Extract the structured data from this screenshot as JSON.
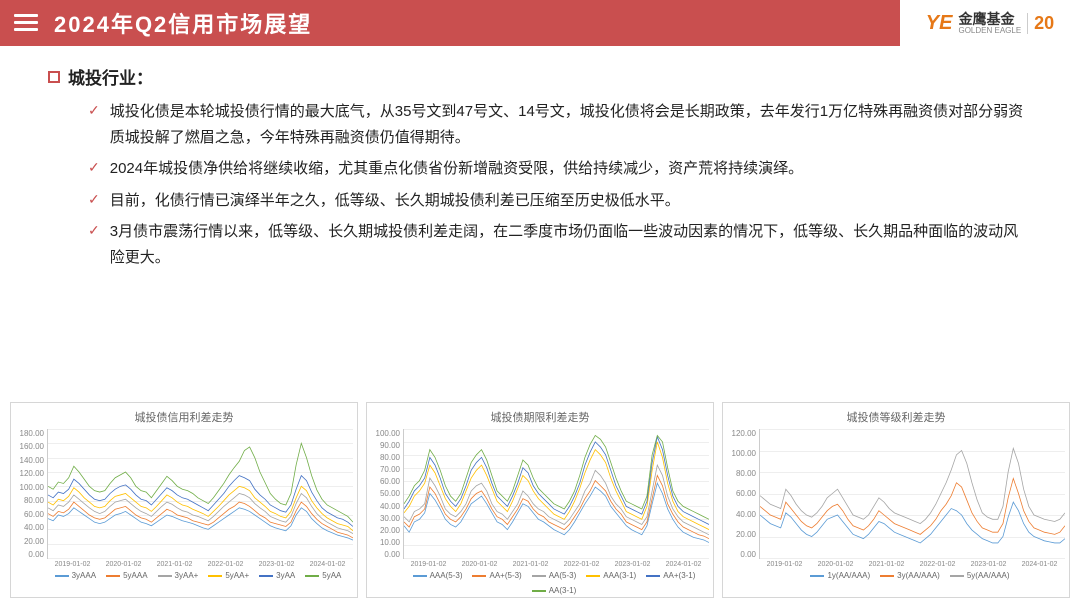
{
  "header": {
    "title": "2024年Q2信用市场展望",
    "logo_brand": "YE",
    "logo_name": "金鹰基金",
    "logo_name_en": "GOLDEN EAGLE",
    "logo_badge": "20"
  },
  "section": {
    "title": "城投行业：",
    "bullets": [
      "城投化债是本轮城投债行情的最大底气，从35号文到47号文、14号文，城投化债将会是长期政策，去年发行1万亿特殊再融资债对部分弱资质城投解了燃眉之急，今年特殊再融资债仍值得期待。",
      "2024年城投债净供给将继续收缩，尤其重点化债省份新增融资受限，供给持续减少，资产荒将持续演绎。",
      "目前，化债行情已演绎半年之久，低等级、长久期城投债利差已压缩至历史极低水平。",
      "3月债市震荡行情以来，低等级、长久期城投债利差走阔，在二季度市场仍面临一些波动因素的情况下，低等级、长久期品种面临的波动风险更大。"
    ]
  },
  "charts": [
    {
      "title": "城投债信用利差走势",
      "type": "line",
      "ylim": [
        0,
        180
      ],
      "ytick_step": 20,
      "yticks": [
        "180.00",
        "160.00",
        "140.00",
        "120.00",
        "100.00",
        "80.00",
        "60.00",
        "40.00",
        "20.00",
        "0.00"
      ],
      "xticks": [
        "2019-01-02",
        "2020-01-02",
        "2021-01-02",
        "2022-01-02",
        "2023-01-02",
        "2024-01-02"
      ],
      "x_count": 60,
      "grid_color": "#eeeeee",
      "background_color": "#ffffff",
      "series": [
        {
          "label": "3yAAA",
          "color": "#5b9bd5",
          "data": [
            55,
            52,
            60,
            58,
            62,
            70,
            65,
            60,
            55,
            50,
            48,
            50,
            55,
            60,
            62,
            65,
            60,
            55,
            50,
            48,
            45,
            50,
            55,
            60,
            58,
            55,
            52,
            50,
            48,
            45,
            42,
            40,
            45,
            50,
            55,
            60,
            65,
            70,
            68,
            65,
            60,
            55,
            50,
            45,
            42,
            40,
            38,
            45,
            60,
            70,
            65,
            55,
            48,
            42,
            38,
            35,
            32,
            30,
            28,
            25
          ]
        },
        {
          "label": "5yAAA",
          "color": "#ed7d31",
          "data": [
            62,
            58,
            65,
            63,
            68,
            78,
            72,
            66,
            60,
            56,
            54,
            56,
            62,
            68,
            70,
            72,
            66,
            60,
            56,
            54,
            50,
            56,
            62,
            68,
            65,
            60,
            58,
            56,
            52,
            50,
            48,
            46,
            50,
            56,
            62,
            68,
            72,
            78,
            76,
            72,
            66,
            60,
            56,
            50,
            48,
            46,
            44,
            50,
            66,
            78,
            72,
            62,
            54,
            48,
            44,
            40,
            36,
            34,
            32,
            28
          ]
        },
        {
          "label": "3yAA+",
          "color": "#a5a5a5",
          "data": [
            70,
            66,
            74,
            72,
            78,
            88,
            82,
            76,
            70,
            65,
            62,
            65,
            72,
            78,
            80,
            82,
            76,
            70,
            65,
            62,
            58,
            65,
            72,
            78,
            75,
            70,
            66,
            64,
            60,
            58,
            55,
            52,
            58,
            65,
            72,
            78,
            84,
            90,
            88,
            84,
            76,
            70,
            65,
            58,
            55,
            52,
            50,
            58,
            76,
            90,
            84,
            72,
            62,
            55,
            50,
            46,
            42,
            40,
            38,
            34
          ]
        },
        {
          "label": "5yAA+",
          "color": "#ffc000",
          "data": [
            78,
            74,
            82,
            80,
            86,
            98,
            92,
            84,
            78,
            72,
            70,
            72,
            80,
            86,
            88,
            90,
            84,
            78,
            72,
            70,
            65,
            72,
            80,
            88,
            84,
            78,
            74,
            72,
            68,
            65,
            62,
            58,
            65,
            72,
            80,
            88,
            94,
            100,
            98,
            94,
            84,
            78,
            72,
            65,
            62,
            58,
            56,
            65,
            84,
            100,
            94,
            80,
            70,
            62,
            56,
            52,
            48,
            46,
            44,
            38
          ]
        },
        {
          "label": "3yAA",
          "color": "#4472c4",
          "data": [
            88,
            84,
            92,
            90,
            96,
            110,
            104,
            96,
            88,
            82,
            80,
            82,
            90,
            96,
            100,
            102,
            96,
            88,
            82,
            80,
            74,
            82,
            90,
            98,
            94,
            88,
            84,
            82,
            78,
            74,
            70,
            66,
            74,
            82,
            90,
            100,
            108,
            115,
            112,
            108,
            96,
            88,
            82,
            74,
            70,
            66,
            64,
            74,
            96,
            115,
            108,
            92,
            80,
            70,
            64,
            60,
            56,
            54,
            50,
            44
          ]
        },
        {
          "label": "5yAA",
          "color": "#70ad47",
          "data": [
            100,
            96,
            106,
            104,
            112,
            128,
            120,
            110,
            100,
            94,
            92,
            94,
            104,
            112,
            116,
            120,
            112,
            100,
            94,
            92,
            84,
            94,
            104,
            114,
            108,
            100,
            96,
            94,
            90,
            84,
            80,
            76,
            84,
            94,
            104,
            116,
            126,
            135,
            150,
            155,
            140,
            120,
            105,
            90,
            82,
            76,
            74,
            90,
            130,
            160,
            140,
            115,
            95,
            82,
            74,
            70,
            66,
            62,
            58,
            50
          ]
        }
      ]
    },
    {
      "title": "城投债期限利差走势",
      "type": "line",
      "ylim": [
        0,
        100
      ],
      "ytick_step": 10,
      "yticks": [
        "100.00",
        "90.00",
        "80.00",
        "70.00",
        "60.00",
        "50.00",
        "40.00",
        "30.00",
        "20.00",
        "10.00",
        "0.00"
      ],
      "xticks": [
        "2019-01-02",
        "2020-01-02",
        "2021-01-02",
        "2022-01-02",
        "2023-01-02",
        "2024-01-02"
      ],
      "x_count": 60,
      "grid_color": "#eeeeee",
      "background_color": "#ffffff",
      "series": [
        {
          "label": "AAA(5-3)",
          "color": "#5b9bd5",
          "data": [
            25,
            20,
            28,
            30,
            35,
            50,
            45,
            38,
            30,
            26,
            24,
            28,
            35,
            42,
            45,
            48,
            42,
            35,
            28,
            26,
            22,
            28,
            35,
            42,
            40,
            35,
            30,
            28,
            25,
            22,
            20,
            18,
            22,
            28,
            35,
            42,
            48,
            55,
            52,
            48,
            40,
            35,
            30,
            25,
            22,
            20,
            18,
            25,
            42,
            58,
            50,
            38,
            30,
            24,
            20,
            18,
            16,
            15,
            14,
            12
          ]
        },
        {
          "label": "AA+(5-3)",
          "color": "#ed7d31",
          "data": [
            28,
            24,
            32,
            34,
            38,
            55,
            50,
            42,
            34,
            30,
            28,
            32,
            38,
            46,
            50,
            52,
            46,
            38,
            32,
            30,
            26,
            32,
            38,
            46,
            44,
            38,
            34,
            32,
            28,
            26,
            24,
            22,
            26,
            32,
            38,
            46,
            52,
            60,
            56,
            52,
            44,
            38,
            34,
            28,
            26,
            24,
            22,
            28,
            46,
            64,
            56,
            42,
            34,
            28,
            24,
            22,
            20,
            18,
            17,
            15
          ]
        },
        {
          "label": "AA(5-3)",
          "color": "#a5a5a5",
          "data": [
            32,
            28,
            36,
            38,
            42,
            62,
            56,
            48,
            38,
            34,
            32,
            36,
            42,
            52,
            56,
            58,
            52,
            42,
            36,
            34,
            30,
            36,
            42,
            52,
            48,
            42,
            38,
            36,
            32,
            30,
            28,
            26,
            30,
            36,
            42,
            52,
            58,
            68,
            64,
            58,
            48,
            42,
            38,
            32,
            30,
            28,
            26,
            32,
            52,
            72,
            64,
            48,
            38,
            32,
            28,
            26,
            24,
            22,
            20,
            18
          ]
        },
        {
          "label": "AAA(3-1)",
          "color": "#ffc000",
          "data": [
            35,
            40,
            48,
            52,
            58,
            72,
            66,
            56,
            46,
            40,
            36,
            42,
            52,
            62,
            68,
            72,
            64,
            54,
            44,
            40,
            36,
            44,
            54,
            64,
            60,
            52,
            46,
            42,
            38,
            34,
            32,
            30,
            36,
            44,
            54,
            66,
            76,
            84,
            80,
            74,
            62,
            52,
            44,
            36,
            34,
            32,
            30,
            40,
            68,
            90,
            78,
            58,
            44,
            36,
            32,
            30,
            28,
            26,
            24,
            22
          ]
        },
        {
          "label": "AA+(3-1)",
          "color": "#4472c4",
          "data": [
            38,
            44,
            52,
            56,
            62,
            78,
            72,
            62,
            50,
            44,
            40,
            46,
            56,
            68,
            74,
            78,
            70,
            58,
            48,
            44,
            40,
            48,
            58,
            70,
            66,
            56,
            50,
            46,
            42,
            38,
            36,
            34,
            40,
            48,
            58,
            72,
            82,
            90,
            86,
            80,
            68,
            56,
            48,
            40,
            38,
            36,
            34,
            44,
            74,
            94,
            84,
            64,
            48,
            40,
            36,
            34,
            32,
            30,
            28,
            26
          ]
        },
        {
          "label": "AA(3-1)",
          "color": "#70ad47",
          "data": [
            42,
            48,
            56,
            60,
            68,
            84,
            78,
            68,
            56,
            48,
            44,
            50,
            62,
            74,
            80,
            84,
            76,
            64,
            52,
            48,
            44,
            52,
            64,
            76,
            72,
            62,
            54,
            50,
            46,
            42,
            40,
            38,
            44,
            52,
            64,
            78,
            88,
            95,
            92,
            86,
            74,
            62,
            52,
            44,
            42,
            40,
            38,
            48,
            80,
            95,
            90,
            70,
            52,
            44,
            40,
            38,
            36,
            34,
            32,
            30
          ]
        }
      ]
    },
    {
      "title": "城投债等级利差走势",
      "type": "line",
      "ylim": [
        0,
        120
      ],
      "ytick_step": 20,
      "yticks": [
        "120.00",
        "100.00",
        "80.00",
        "60.00",
        "40.00",
        "20.00",
        "0.00"
      ],
      "xticks": [
        "2019-01-02",
        "2020-01-02",
        "2021-01-02",
        "2022-01-02",
        "2023-01-02",
        "2024-01-02"
      ],
      "x_count": 60,
      "grid_color": "#eeeeee",
      "background_color": "#ffffff",
      "series": [
        {
          "label": "1y(AA/AAA)",
          "color": "#5b9bd5",
          "data": [
            40,
            36,
            32,
            30,
            28,
            42,
            38,
            32,
            26,
            22,
            20,
            24,
            30,
            36,
            38,
            40,
            34,
            28,
            22,
            20,
            18,
            22,
            28,
            34,
            32,
            28,
            24,
            22,
            20,
            18,
            16,
            14,
            18,
            22,
            28,
            34,
            40,
            46,
            44,
            40,
            32,
            26,
            22,
            18,
            16,
            14,
            14,
            20,
            38,
            52,
            44,
            32,
            24,
            20,
            18,
            16,
            15,
            14,
            14,
            18
          ]
        },
        {
          "label": "3y(AA/AAA)",
          "color": "#ed7d31",
          "data": [
            48,
            44,
            40,
            38,
            36,
            52,
            46,
            40,
            34,
            30,
            28,
            32,
            38,
            44,
            48,
            50,
            44,
            36,
            30,
            28,
            26,
            30,
            36,
            44,
            40,
            36,
            32,
            30,
            28,
            26,
            24,
            22,
            26,
            30,
            36,
            44,
            50,
            58,
            70,
            66,
            54,
            42,
            34,
            28,
            26,
            24,
            24,
            32,
            56,
            74,
            60,
            44,
            34,
            28,
            26,
            24,
            23,
            22,
            24,
            30
          ]
        },
        {
          "label": "5y(AA/AAA)",
          "color": "#a5a5a5",
          "data": [
            58,
            54,
            50,
            48,
            46,
            64,
            58,
            50,
            44,
            40,
            38,
            42,
            48,
            56,
            60,
            64,
            56,
            48,
            40,
            38,
            36,
            40,
            48,
            56,
            52,
            46,
            42,
            40,
            38,
            36,
            34,
            32,
            36,
            42,
            50,
            60,
            70,
            82,
            96,
            100,
            88,
            70,
            54,
            42,
            38,
            36,
            36,
            48,
            80,
            102,
            88,
            64,
            48,
            40,
            38,
            36,
            35,
            34,
            36,
            42
          ]
        }
      ]
    }
  ]
}
